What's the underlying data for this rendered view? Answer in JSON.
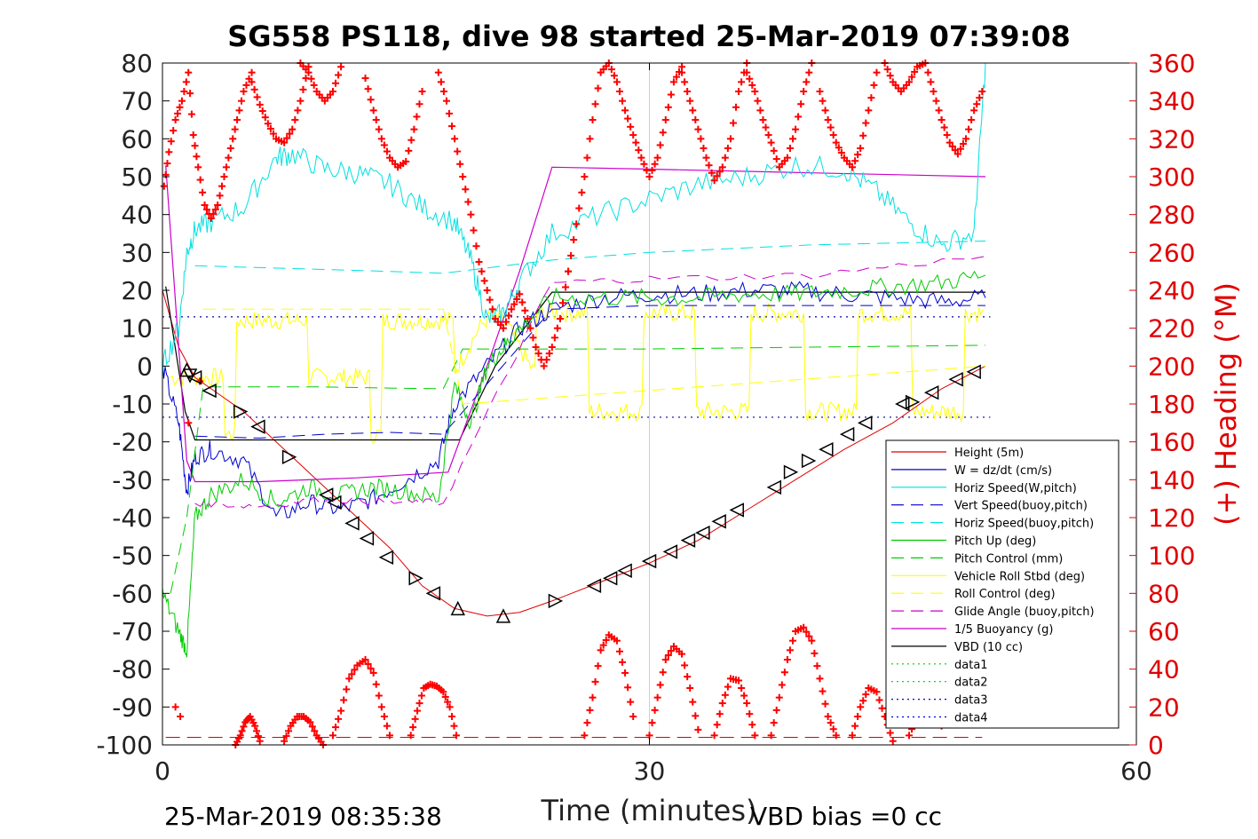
{
  "chart_data": {
    "type": "line",
    "title": "SG558 PS118, dive 98 started 25-Mar-2019 07:39:08",
    "xlabel": "Time (minutes)",
    "ylabel_right": "(+) Heading (°M)",
    "xlim": [
      0,
      60
    ],
    "ylim": [
      -100,
      80
    ],
    "ylim_right": [
      0,
      360
    ],
    "xticks": [
      "0",
      "30",
      "60"
    ],
    "yticks": [
      "80",
      "70",
      "60",
      "50",
      "40",
      "30",
      "20",
      "10",
      "0",
      "-10",
      "-20",
      "-30",
      "-40",
      "-50",
      "-60",
      "-70",
      "-80",
      "-90",
      "-100"
    ],
    "yticks_right": [
      "360",
      "340",
      "320",
      "300",
      "280",
      "260",
      "240",
      "220",
      "200",
      "180",
      "160",
      "140",
      "120",
      "100",
      "80",
      "60",
      "40",
      "20",
      "0"
    ],
    "grid": "x=30 only",
    "legend_position": "lower-right",
    "footer_left": "25-Mar-2019 08:35:38",
    "footer_right": "VBD bias =0 cc",
    "colors": {
      "height": "#e00000",
      "w": "#0000cc",
      "horiz_w": "#00e0e0",
      "vert_buoy": "#0000cc",
      "horiz_buoy": "#00e0e0",
      "pitch_up": "#00cc00",
      "pitch_ctrl": "#00cc00",
      "roll": "#ffff00",
      "roll_ctrl": "#ffff00",
      "glide": "#cc00cc",
      "buoyancy": "#cc00cc",
      "vbd": "#000000",
      "heading": "#ff0000",
      "accent_right": "#e00000"
    },
    "legend": [
      {
        "name": "Height (5m)",
        "color": "#e00000",
        "style": "solid"
      },
      {
        "name": "W = dz/dt (cm/s)",
        "color": "#0000cc",
        "style": "solid"
      },
      {
        "name": "Horiz Speed(W,pitch)",
        "color": "#00e0e0",
        "style": "solid"
      },
      {
        "name": "Vert Speed(buoy,pitch)",
        "color": "#0000cc",
        "style": "dashed"
      },
      {
        "name": "Horiz Speed(buoy,pitch)",
        "color": "#00e0e0",
        "style": "dashed"
      },
      {
        "name": "Pitch Up (deg)",
        "color": "#00cc00",
        "style": "solid"
      },
      {
        "name": "Pitch Control (mm)",
        "color": "#00cc00",
        "style": "dashed"
      },
      {
        "name": "Vehicle Roll Stbd (deg)",
        "color": "#ffff00",
        "style": "solid"
      },
      {
        "name": "Roll Control (deg)",
        "color": "#ffff00",
        "style": "dashed"
      },
      {
        "name": "Glide Angle (buoy,pitch)",
        "color": "#cc00cc",
        "style": "dashed"
      },
      {
        "name": "1/5 Buoyancy (g)",
        "color": "#cc00cc",
        "style": "solid"
      },
      {
        "name": "VBD (10 cc)",
        "color": "#000000",
        "style": "solid"
      },
      {
        "name": "data1",
        "color": "#00cc00",
        "style": "dotted"
      },
      {
        "name": "data2",
        "color": "#00cc00",
        "style": "dotted"
      },
      {
        "name": "data3",
        "color": "#0000cc",
        "style": "dotted"
      },
      {
        "name": "data4",
        "color": "#0000cc",
        "style": "dotted"
      }
    ],
    "series": [
      {
        "key": "height",
        "x": [
          0,
          1,
          2,
          3,
          5,
          8,
          11,
          14,
          16,
          18,
          20,
          22,
          24,
          27,
          30,
          33,
          36,
          39,
          42,
          45,
          48,
          50.7
        ],
        "y": [
          20,
          5,
          -3,
          -6,
          -12,
          -24,
          -36,
          -48,
          -58,
          -64,
          -66,
          -65,
          -62,
          -57,
          -52,
          -46,
          -38,
          -30,
          -22,
          -15,
          -6,
          0
        ]
      },
      {
        "key": "vbd",
        "x": [
          0.2,
          1.4,
          2.0,
          6,
          12,
          17,
          18.3,
          20.5,
          24,
          30,
          40,
          50.7
        ],
        "y": [
          21,
          -12,
          -19.5,
          -19.5,
          -19.5,
          -19.5,
          -19.5,
          0,
          19.5,
          19.5,
          19.5,
          19.5
        ]
      },
      {
        "key": "buoyancy",
        "x": [
          0.2,
          1.5,
          2.0,
          6,
          12,
          17.6,
          20,
          22,
          24,
          30,
          40,
          50.7
        ],
        "y": [
          53,
          -25,
          -30.5,
          -30.5,
          -29.5,
          -28,
          0,
          25,
          52.5,
          52,
          51,
          50
        ]
      },
      {
        "key": "w",
        "x": [
          0,
          1,
          1.5,
          2,
          3,
          5,
          7,
          9,
          11,
          13,
          15,
          17,
          18,
          20,
          22,
          24,
          27,
          30,
          33,
          36,
          39,
          42,
          45,
          48,
          50.7
        ],
        "y": [
          0,
          -15,
          -33,
          -24,
          -22,
          -25,
          -40,
          -36,
          -38,
          -35,
          -30,
          -25,
          -10,
          0,
          10,
          15,
          18,
          19,
          19,
          20,
          20,
          19,
          18,
          17,
          18
        ]
      },
      {
        "key": "horiz_w",
        "x": [
          0,
          1,
          1.5,
          2,
          3,
          5,
          7,
          8,
          10,
          12,
          14,
          16,
          18,
          19,
          20,
          21,
          22,
          24,
          27,
          30,
          33,
          36,
          39,
          42,
          44,
          46,
          48,
          50,
          50.7
        ],
        "y": [
          0,
          10,
          30,
          36,
          38,
          42,
          55,
          56,
          52,
          51,
          48,
          42,
          38,
          28,
          12,
          14,
          22,
          35,
          40,
          44,
          48,
          50,
          53,
          52,
          46,
          38,
          32,
          35,
          80
        ]
      },
      {
        "key": "vert_buoy",
        "x": [
          2,
          6,
          10,
          14,
          17.3,
          24,
          30,
          40,
          50.7
        ],
        "y": [
          -18.5,
          -19,
          -18,
          -17.5,
          -18,
          15,
          16,
          16,
          16
        ]
      },
      {
        "key": "horiz_buoy",
        "x": [
          2,
          6,
          10,
          14,
          17.3,
          24,
          30,
          40,
          50.7
        ],
        "y": [
          26.5,
          26,
          25.5,
          25,
          24.5,
          28,
          30,
          32,
          33
        ]
      },
      {
        "key": "pitch_up",
        "x": [
          0,
          1,
          1.5,
          2,
          3,
          5,
          7,
          9,
          11,
          13,
          15,
          17,
          18,
          19,
          20,
          21,
          22,
          24,
          27,
          30,
          33,
          36,
          39,
          42,
          45,
          48,
          50.7
        ],
        "y": [
          -60,
          -70,
          -75,
          -40,
          -34,
          -30,
          -36,
          -32,
          -34,
          -32,
          -33,
          -35,
          -5,
          -15,
          0,
          5,
          10,
          18,
          18,
          18,
          18,
          19,
          19,
          20,
          21,
          22,
          24
        ]
      },
      {
        "key": "pitch_ctrl",
        "x": [
          0.5,
          1.5,
          2.5,
          6,
          10,
          14,
          17.3,
          18.5,
          24,
          30,
          40,
          50.7
        ],
        "y": [
          -60,
          -40,
          -5.5,
          -5.5,
          -5.5,
          -5.8,
          -6,
          4.5,
          4.5,
          4.5,
          5,
          5.5
        ]
      },
      {
        "key": "glide",
        "x": [
          2,
          6,
          10,
          14,
          17.3,
          24,
          30,
          40,
          50.7
        ],
        "y": [
          -36,
          -37,
          -35,
          -36,
          -36,
          22,
          23,
          24,
          29
        ]
      },
      {
        "key": "roll_ctrl",
        "x": [
          2.5,
          17.3,
          18.5,
          50.7
        ],
        "y": [
          15,
          15,
          -10,
          0
        ]
      }
    ],
    "heading_segments": [
      {
        "x": [
          0.1,
          0.4,
          0.8,
          1.2,
          1.6,
          1.9,
          2.2,
          2.6,
          3.0,
          3.4,
          3.8,
          4.2,
          4.6,
          5.0,
          5.5
        ],
        "h": [
          295,
          313,
          330,
          340,
          355,
          322,
          305,
          285,
          278,
          285,
          300,
          315,
          330,
          345,
          355
        ]
      },
      {
        "x": [
          5.5,
          6.0,
          6.5,
          7.0,
          7.5,
          8.0,
          8.5,
          9.0
        ],
        "h": [
          350,
          338,
          328,
          320,
          318,
          325,
          340,
          358
        ]
      },
      {
        "x": [
          8.5,
          9.0,
          9.5,
          10.0,
          10.5,
          11.0
        ],
        "h": [
          360,
          355,
          345,
          340,
          345,
          358
        ]
      },
      {
        "x": [
          12.5,
          13.0,
          13.5,
          14.0,
          14.5,
          15.0,
          15.5,
          16.0
        ],
        "h": [
          352,
          335,
          320,
          310,
          305,
          308,
          325,
          345
        ]
      },
      {
        "x": [
          17.0,
          17.5,
          18.0,
          18.5,
          19.0,
          19.5,
          20.0,
          20.5,
          21.0,
          21.5,
          22.0,
          22.5,
          23.0,
          23.5,
          24.0,
          24.5,
          25.0
        ],
        "h": [
          355,
          340,
          320,
          300,
          280,
          255,
          240,
          225,
          220,
          230,
          238,
          225,
          210,
          200,
          210,
          225,
          250
        ]
      },
      {
        "x": [
          25.0,
          25.5,
          26.0,
          26.5,
          27.0,
          27.5,
          28.0,
          28.5,
          29.0,
          29.5,
          30.0,
          30.5,
          31.0,
          31.5,
          32.0
        ],
        "h": [
          250,
          275,
          300,
          330,
          355,
          360,
          350,
          335,
          322,
          310,
          300,
          310,
          330,
          350,
          358
        ]
      },
      {
        "x": [
          32.0,
          32.5,
          33.0,
          33.5,
          34.0,
          34.5,
          35.0,
          35.5,
          36.0
        ],
        "h": [
          355,
          340,
          325,
          310,
          298,
          305,
          320,
          345,
          360
        ]
      },
      {
        "x": [
          36.0,
          36.5,
          37.0,
          37.5,
          38.0,
          38.5,
          39.0,
          39.5,
          40.0
        ],
        "h": [
          355,
          345,
          330,
          318,
          305,
          310,
          325,
          345,
          360
        ]
      },
      {
        "x": [
          40.5,
          41.0,
          41.5,
          42.0,
          42.5,
          43.0,
          43.5,
          44.0
        ],
        "h": [
          345,
          330,
          318,
          310,
          305,
          315,
          335,
          355
        ]
      },
      {
        "x": [
          44.5,
          45.0,
          45.5,
          46.0,
          46.5,
          47.0,
          47.5,
          48.0
        ],
        "h": [
          360,
          350,
          345,
          350,
          358,
          360,
          345,
          330
        ]
      },
      {
        "x": [
          48.0,
          48.5,
          49.0,
          49.5,
          50.0,
          50.5
        ],
        "h": [
          330,
          318,
          312,
          320,
          335,
          345
        ]
      }
    ],
    "heading_bumps": [
      {
        "x": [
          4.5,
          4.8,
          5.1,
          5.4,
          5.7,
          6.0
        ],
        "h": [
          0,
          5,
          12,
          15,
          10,
          2
        ]
      },
      {
        "x": [
          7.5,
          7.9,
          8.3,
          8.7,
          9.1,
          9.5,
          9.9
        ],
        "h": [
          2,
          10,
          15,
          15,
          12,
          5,
          0
        ]
      },
      {
        "x": [
          10.5,
          11.0,
          11.5,
          12.0,
          12.5,
          13.0,
          13.5,
          14.0
        ],
        "h": [
          5,
          18,
          35,
          42,
          45,
          38,
          20,
          5
        ]
      },
      {
        "x": [
          15.3,
          15.7,
          16.1,
          16.5,
          16.9,
          17.3,
          17.7,
          18.1
        ],
        "h": [
          5,
          18,
          30,
          32,
          31,
          28,
          20,
          5
        ]
      },
      {
        "x": [
          26.0,
          26.5,
          27.0,
          27.5,
          28.0,
          28.5,
          29.0
        ],
        "h": [
          5,
          25,
          50,
          58,
          55,
          38,
          15
        ]
      },
      {
        "x": [
          30.0,
          30.5,
          31.0,
          31.5,
          32.0,
          32.5,
          33.0
        ],
        "h": [
          5,
          25,
          45,
          52,
          48,
          30,
          8
        ]
      },
      {
        "x": [
          34.0,
          34.5,
          35.0,
          35.5,
          36.0,
          36.5
        ],
        "h": [
          5,
          22,
          35,
          34,
          22,
          5
        ]
      },
      {
        "x": [
          37.5,
          38.0,
          38.5,
          39.0,
          39.5,
          40.0,
          40.5,
          41.0,
          41.5
        ],
        "h": [
          5,
          25,
          45,
          60,
          62,
          55,
          35,
          15,
          5
        ]
      },
      {
        "x": [
          42.5,
          43.0,
          43.5,
          44.0,
          44.5,
          45.0
        ],
        "h": [
          5,
          20,
          30,
          28,
          15,
          2
        ]
      },
      {
        "x": [
          46.0,
          46.5,
          47.0,
          47.5,
          48.0
        ],
        "h": [
          5,
          15,
          28,
          25,
          10
        ]
      }
    ],
    "heading_isolated": [
      {
        "x": 0.8,
        "h": 20
      },
      {
        "x": 1.1,
        "h": 15
      },
      {
        "x": 1.6,
        "h": 170
      },
      {
        "x": 2.3,
        "h": 192
      }
    ],
    "dotted_lines": [
      {
        "y": 13,
        "color": "#0000aa"
      },
      {
        "y": -13.5,
        "color": "#0000aa"
      }
    ],
    "red_dashed_y": -98,
    "triangle_markers": [
      {
        "x": 1.5,
        "y": -1,
        "dir": "up"
      },
      {
        "x": 1.7,
        "y": -2.5,
        "dir": "down"
      },
      {
        "x": 2.0,
        "y": -3,
        "dir": "left"
      },
      {
        "x": 2.9,
        "y": -6.5,
        "dir": "left"
      },
      {
        "x": 4.8,
        "y": -12,
        "dir": "right"
      },
      {
        "x": 5.9,
        "y": -16,
        "dir": "left"
      },
      {
        "x": 7.8,
        "y": -24,
        "dir": "right"
      },
      {
        "x": 10.1,
        "y": -34,
        "dir": "left"
      },
      {
        "x": 10.6,
        "y": -36,
        "dir": "left"
      },
      {
        "x": 11.7,
        "y": -41.5,
        "dir": "left"
      },
      {
        "x": 12.6,
        "y": -45.5,
        "dir": "left"
      },
      {
        "x": 13.8,
        "y": -50.5,
        "dir": "left"
      },
      {
        "x": 15.6,
        "y": -56,
        "dir": "right"
      },
      {
        "x": 16.7,
        "y": -60,
        "dir": "left"
      },
      {
        "x": 18.2,
        "y": -64,
        "dir": "up"
      },
      {
        "x": 21.0,
        "y": -66,
        "dir": "up"
      },
      {
        "x": 24.2,
        "y": -62,
        "dir": "right"
      },
      {
        "x": 26.6,
        "y": -58,
        "dir": "left"
      },
      {
        "x": 27.6,
        "y": -56,
        "dir": "left"
      },
      {
        "x": 28.5,
        "y": -54,
        "dir": "left"
      },
      {
        "x": 30.0,
        "y": -51.5,
        "dir": "left"
      },
      {
        "x": 31.3,
        "y": -49,
        "dir": "left"
      },
      {
        "x": 32.4,
        "y": -46,
        "dir": "left"
      },
      {
        "x": 33.3,
        "y": -44,
        "dir": "left"
      },
      {
        "x": 34.3,
        "y": -41,
        "dir": "left"
      },
      {
        "x": 35.4,
        "y": -38,
        "dir": "left"
      },
      {
        "x": 37.7,
        "y": -32,
        "dir": "left"
      },
      {
        "x": 38.7,
        "y": -28,
        "dir": "right"
      },
      {
        "x": 39.8,
        "y": -25,
        "dir": "right"
      },
      {
        "x": 40.9,
        "y": -22,
        "dir": "left"
      },
      {
        "x": 42.2,
        "y": -18,
        "dir": "left"
      },
      {
        "x": 43.3,
        "y": -15,
        "dir": "left"
      },
      {
        "x": 45.6,
        "y": -10,
        "dir": "left"
      },
      {
        "x": 46.2,
        "y": -9.5,
        "dir": "right"
      },
      {
        "x": 47.4,
        "y": -7,
        "dir": "left"
      },
      {
        "x": 48.9,
        "y": -3.5,
        "dir": "left"
      },
      {
        "x": 50.0,
        "y": -1.5,
        "dir": "left"
      }
    ]
  }
}
